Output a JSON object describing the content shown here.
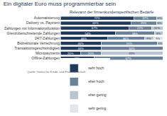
{
  "chart_data": {
    "type": "bar",
    "title": "Ein digitaler Euro muss programmierbar sein",
    "subtitle": "Relevanz der firmenkundenspezifischen Bedarfe",
    "source": "Quelle: Institut für Kredit- und Finanzwirtschaft",
    "orientation": "horizontal",
    "stacked": true,
    "data_labels": true,
    "tick_labels": "y",
    "legend": "bottom left",
    "xlim": [
      0,
      100
    ],
    "categories": [
      "Automatisierung",
      "Delivery vs. Payment",
      "Zahlungen mit Informationsfunktion",
      "Grenzüberschreitende Zahlungen",
      "24/7-Zahlungen",
      "Bidirektionale Verrechnung",
      "Transaktionsgeschwindigkeit",
      "Micropayments",
      "Offline-Zahlungen"
    ],
    "series": [
      {
        "name": "sehr hoch",
        "color": "#1f3a5a",
        "values": [
          72,
          69,
          67,
          54,
          46,
          40,
          40,
          20,
          33
        ],
        "value_labels": [
          "72%",
          "69%",
          "67%",
          "54%",
          "46%",
          "40%",
          "40%",
          "20%",
          "33%"
        ]
      },
      {
        "name": "eher hoch",
        "color": "#6a8299",
        "values": [
          22,
          25,
          22,
          38,
          36,
          55,
          60,
          20,
          67
        ],
        "value_labels": [
          "22%",
          "25%",
          "22%",
          "38%",
          "36%",
          "55%",
          "60%",
          "20%",
          "67%"
        ]
      },
      {
        "name": "eher gering",
        "color": "#b9c4cf",
        "values": [
          6,
          6,
          11,
          8,
          9,
          5,
          null,
          60,
          null
        ],
        "value_labels": [
          "6%",
          "6%",
          "11%",
          "8%",
          "9%",
          "5%",
          null,
          "60%",
          null
        ]
      },
      {
        "name": "sehr gering",
        "color": "#e2e6eb",
        "values": [
          null,
          null,
          null,
          null,
          9,
          null,
          null,
          null,
          null
        ],
        "value_labels": [
          null,
          null,
          null,
          null,
          "9%",
          null,
          null,
          null,
          null
        ]
      }
    ]
  }
}
